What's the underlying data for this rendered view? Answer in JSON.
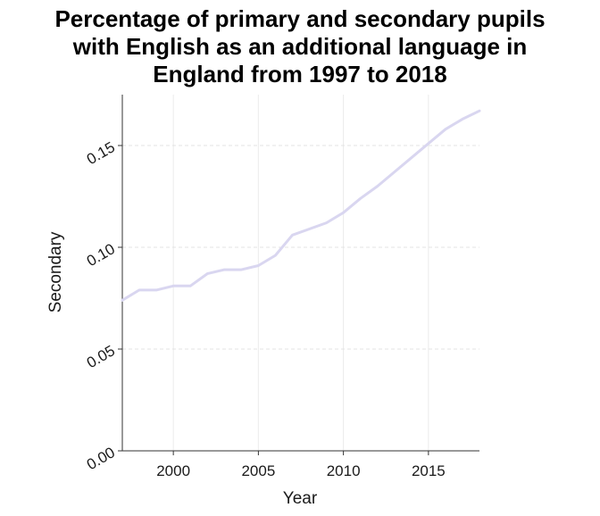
{
  "chart_data": {
    "type": "line",
    "title": "Percentage of primary and secondary pupils with English as an additional language in England from 1997 to 2018",
    "title_lines": [
      "Percentage of primary and secondary pupils",
      "with English as an additional language in",
      "England from 1997 to 2018"
    ],
    "xlabel": "Year",
    "ylabel": "Secondary",
    "xlim": [
      1997,
      2018
    ],
    "ylim": [
      0,
      0.175
    ],
    "x_ticks": [
      2000,
      2005,
      2010,
      2015
    ],
    "y_ticks": [
      0.0,
      0.05,
      0.1,
      0.15
    ],
    "y_tick_labels": [
      "0.00",
      "0.05",
      "0.10",
      "0.15"
    ],
    "grid": true,
    "series": [
      {
        "color": "#d9d6f0",
        "x": [
          1997,
          1998,
          1999,
          2000,
          2001,
          2002,
          2003,
          2004,
          2005,
          2006,
          2007,
          2008,
          2009,
          2010,
          2011,
          2012,
          2013,
          2014,
          2015,
          2016,
          2017,
          2018
        ],
        "values": [
          0.074,
          0.079,
          0.079,
          0.081,
          0.081,
          0.087,
          0.089,
          0.089,
          0.091,
          0.096,
          0.106,
          0.109,
          0.112,
          0.117,
          0.124,
          0.13,
          0.137,
          0.144,
          0.151,
          0.158,
          0.163,
          0.167
        ]
      }
    ]
  }
}
